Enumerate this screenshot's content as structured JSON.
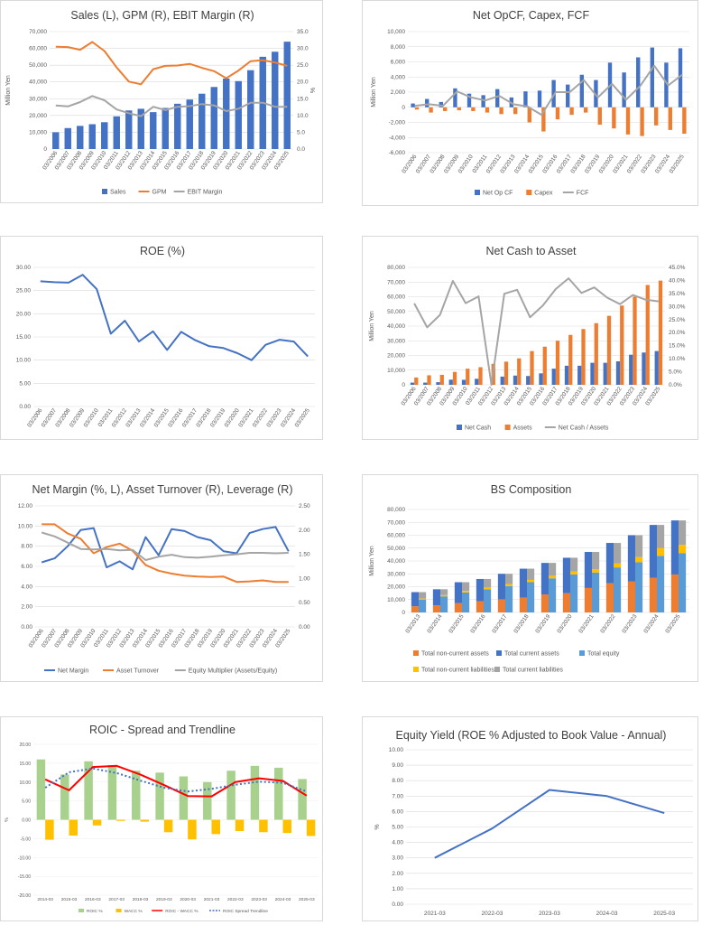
{
  "colors": {
    "blue": "#4472C4",
    "orange": "#ED7D31",
    "gray": "#A5A5A5",
    "yellow": "#FFC000",
    "lightblue": "#5B9BD5",
    "green": "#A9D18E",
    "red": "#FF0000",
    "grid": "#d9d9d9"
  },
  "chart_data": [
    {
      "id": "sales",
      "type": "bar+line",
      "title": "Sales (L), GPM (R), EBIT Margin (R)",
      "ylabel": "Million Yen",
      "y2label": "%",
      "categories": [
        "03/2006",
        "03/2007",
        "03/2008",
        "03/2009",
        "03/2010",
        "03/2011",
        "03/2012",
        "03/2013",
        "03/2014",
        "03/2015",
        "03/2016",
        "03/2017",
        "03/2018",
        "03/2019",
        "03/2020",
        "03/2021",
        "03/2022",
        "03/2023",
        "03/2024",
        "03/2025"
      ],
      "ylim": [
        0,
        70000
      ],
      "yticks": [
        0,
        10000,
        20000,
        30000,
        40000,
        50000,
        60000,
        70000
      ],
      "yticklabels": [
        "0",
        "10,000",
        "20,000",
        "30,000",
        "40,000",
        "50,000",
        "60,000",
        "70,000"
      ],
      "y2lim": [
        0,
        35
      ],
      "y2ticks": [
        0,
        5,
        10,
        15,
        20,
        25,
        30,
        35
      ],
      "y2ticklabels": [
        "0.0",
        "5.0",
        "10.0",
        "15.0",
        "20.0",
        "25.0",
        "30.0",
        "35.0"
      ],
      "bars": [
        {
          "name": "Sales",
          "color": "#4472C4",
          "values": [
            10000,
            12500,
            13800,
            14800,
            16000,
            19500,
            23000,
            24000,
            22000,
            24500,
            27000,
            29500,
            33000,
            37000,
            42000,
            40500,
            47000,
            55000,
            58000,
            64000
          ]
        }
      ],
      "lines": [
        {
          "name": "GPM",
          "color": "#ED7D31",
          "axis": "right",
          "values": [
            30.5,
            30.4,
            29.6,
            31.9,
            29.2,
            24.3,
            20.1,
            19.3,
            23.8,
            24.8,
            24.9,
            25.4,
            24.2,
            23.2,
            21.1,
            23.4,
            26.2,
            26.5,
            25.8,
            24.8
          ]
        },
        {
          "name": "EBIT Margin",
          "color": "#A5A5A5",
          "axis": "right",
          "values": [
            13.0,
            12.7,
            14.0,
            15.8,
            14.5,
            11.8,
            10.7,
            9.8,
            12.6,
            11.6,
            12.6,
            12.8,
            13.4,
            13.0,
            11.3,
            12.0,
            13.8,
            13.8,
            12.6,
            12.6
          ]
        }
      ]
    },
    {
      "id": "opcf",
      "type": "bar+line",
      "title": "Net OpCF, Capex, FCF",
      "ylabel": "Million Yen",
      "categories": [
        "03/2006",
        "03/2007",
        "03/2008",
        "03/2009",
        "03/2010",
        "03/2011",
        "03/2012",
        "03/2013",
        "03/2014",
        "03/2015",
        "03/2016",
        "03/2017",
        "03/2018",
        "03/2019",
        "03/2020",
        "03/2021",
        "03/2022",
        "03/2023",
        "03/2024",
        "03/2025"
      ],
      "ylim": [
        -6000,
        10000
      ],
      "yticks": [
        -6000,
        -4000,
        -2000,
        0,
        2000,
        4000,
        6000,
        8000,
        10000
      ],
      "yticklabels": [
        "-6,000",
        "-4,000",
        "-2,000",
        "0",
        "2,000",
        "4,000",
        "6,000",
        "8,000",
        "10,000"
      ],
      "bars": [
        {
          "name": "Net Op CF",
          "color": "#4472C4",
          "values": [
            500,
            1100,
            700,
            2500,
            1800,
            1600,
            2400,
            1300,
            2100,
            2200,
            3600,
            3000,
            4300,
            3600,
            5900,
            4600,
            6600,
            7900,
            5900,
            7800
          ]
        },
        {
          "name": "Capex",
          "color": "#ED7D31",
          "values": [
            -300,
            -700,
            -500,
            -400,
            -500,
            -700,
            -900,
            -900,
            -2000,
            -3200,
            -1600,
            -1000,
            -700,
            -2300,
            -2800,
            -3600,
            -3800,
            -2400,
            -3000,
            -3500
          ]
        }
      ],
      "lines": [
        {
          "name": "FCF",
          "color": "#A5A5A5",
          "values": [
            200,
            400,
            200,
            2100,
            1300,
            900,
            1500,
            400,
            100,
            -1000,
            2000,
            2000,
            3600,
            1300,
            3100,
            1000,
            2800,
            5500,
            2900,
            4300
          ]
        }
      ]
    },
    {
      "id": "roe",
      "type": "line",
      "title": "ROE (%)",
      "categories": [
        "03/2006",
        "03/2007",
        "03/2008",
        "03/2009",
        "03/2010",
        "03/2011",
        "03/2012",
        "03/2013",
        "03/2014",
        "03/2015",
        "03/2016",
        "03/2017",
        "03/2018",
        "03/2019",
        "03/2020",
        "03/2021",
        "03/2022",
        "03/2023",
        "03/2024",
        "03/2025"
      ],
      "ylim": [
        0,
        30
      ],
      "yticks": [
        0,
        5,
        10,
        15,
        20,
        25,
        30
      ],
      "yticklabels": [
        "0.00",
        "5.00",
        "10.00",
        "15.00",
        "20.00",
        "25.00",
        "30.00"
      ],
      "lines": [
        {
          "name": "ROE",
          "color": "#4472C4",
          "values": [
            27.0,
            26.8,
            26.7,
            28.4,
            25.3,
            15.7,
            18.5,
            14.0,
            16.2,
            12.2,
            16.1,
            14.3,
            13.0,
            12.6,
            11.5,
            10.0,
            13.3,
            14.4,
            14.0,
            10.8
          ]
        }
      ]
    },
    {
      "id": "netcash",
      "type": "bar+line",
      "title": "Net Cash to Asset",
      "ylabel": "Million Yen",
      "categories": [
        "03/2006",
        "03/2007",
        "03/2008",
        "03/2009",
        "03/2010",
        "03/2011",
        "03/2012",
        "03/2013",
        "03/2014",
        "03/2015",
        "03/2016",
        "03/2017",
        "03/2018",
        "03/2019",
        "03/2020",
        "03/2021",
        "03/2022",
        "03/2023",
        "03/2024",
        "03/2025"
      ],
      "ylim": [
        0,
        80000
      ],
      "yticks": [
        0,
        10000,
        20000,
        30000,
        40000,
        50000,
        60000,
        70000,
        80000
      ],
      "yticklabels": [
        "0",
        "10,000",
        "20,000",
        "30,000",
        "40,000",
        "50,000",
        "60,000",
        "70,000",
        "80,000"
      ],
      "y2lim": [
        0,
        45
      ],
      "y2ticks": [
        0,
        5,
        10,
        15,
        20,
        25,
        30,
        35,
        40,
        45
      ],
      "y2ticklabels": [
        "0.0%",
        "5.0%",
        "10.0%",
        "15.0%",
        "20.0%",
        "25.0%",
        "30.0%",
        "35.0%",
        "40.0%",
        "45.0%"
      ],
      "bars": [
        {
          "name": "Net Cash",
          "color": "#4472C4",
          "values": [
            1500,
            1500,
            1800,
            3500,
            3400,
            4100,
            0,
            5600,
            6300,
            6000,
            7800,
            11000,
            13000,
            13000,
            15000,
            15000,
            16000,
            20500,
            22000,
            23000
          ]
        },
        {
          "name": "Assets",
          "color": "#ED7D31",
          "values": [
            5000,
            6500,
            6800,
            8800,
            11000,
            12000,
            14300,
            15800,
            18000,
            23000,
            26000,
            30000,
            34000,
            38000,
            42000,
            47000,
            54000,
            60000,
            68000,
            71000
          ]
        }
      ],
      "lines": [
        {
          "name": "Net Cash / Assets",
          "color": "#A5A5A5",
          "axis": "right",
          "values": [
            31.2,
            22.0,
            26.8,
            39.8,
            31.3,
            33.9,
            0,
            34.9,
            36.4,
            25.9,
            30.4,
            36.7,
            40.8,
            35.2,
            37.3,
            33.4,
            30.9,
            34.4,
            32.6,
            32.0
          ]
        }
      ]
    },
    {
      "id": "margin",
      "type": "line",
      "title": "Net Margin (%, L), Asset Turnover (R), Leverage (R)",
      "categories": [
        "03/2006",
        "03/2007",
        "03/2008",
        "03/2009",
        "03/2010",
        "03/2011",
        "03/2012",
        "03/2013",
        "03/2014",
        "03/2015",
        "03/2016",
        "03/2017",
        "03/2018",
        "03/2019",
        "03/2020",
        "03/2021",
        "03/2022",
        "03/2023",
        "03/2024",
        "03/2025"
      ],
      "ylim": [
        0,
        12
      ],
      "yticks": [
        0,
        2,
        4,
        6,
        8,
        10,
        12
      ],
      "yticklabels": [
        "0.00",
        "2.00",
        "4.00",
        "6.00",
        "8.00",
        "10.00",
        "12.00"
      ],
      "y2lim": [
        0,
        2.5
      ],
      "y2ticks": [
        0,
        0.5,
        1,
        1.5,
        2,
        2.5
      ],
      "y2ticklabels": [
        "0.00",
        "0.50",
        "1.00",
        "1.50",
        "2.00",
        "2.50"
      ],
      "lines": [
        {
          "name": "Net Margin",
          "color": "#4472C4",
          "axis": "left",
          "values": [
            6.4,
            6.8,
            8.0,
            9.6,
            9.8,
            5.9,
            6.5,
            5.7,
            8.9,
            7.1,
            9.7,
            9.5,
            8.9,
            8.6,
            7.5,
            7.3,
            9.3,
            9.7,
            9.9,
            7.5
          ]
        },
        {
          "name": "Asset Turnover",
          "color": "#ED7D31",
          "axis": "right",
          "values": [
            2.12,
            2.12,
            1.93,
            1.82,
            1.52,
            1.65,
            1.72,
            1.57,
            1.28,
            1.16,
            1.1,
            1.06,
            1.04,
            1.03,
            1.04,
            0.93,
            0.94,
            0.96,
            0.93,
            0.93
          ]
        },
        {
          "name": "Equity Multiplier (Assets/Equity)",
          "color": "#A5A5A5",
          "axis": "right",
          "values": [
            1.95,
            1.87,
            1.74,
            1.61,
            1.6,
            1.61,
            1.58,
            1.59,
            1.38,
            1.45,
            1.49,
            1.44,
            1.43,
            1.45,
            1.48,
            1.5,
            1.53,
            1.53,
            1.52,
            1.53
          ]
        }
      ]
    },
    {
      "id": "bs",
      "type": "stacked-bar",
      "title": "BS Composition",
      "ylabel": "Million Yen",
      "categories": [
        "03/2013",
        "03/2014",
        "03/2015",
        "03/2016",
        "03/2017",
        "03/2018",
        "03/2019",
        "03/2020",
        "03/2021",
        "03/2022",
        "03/2023",
        "03/2024",
        "03/2025"
      ],
      "ylim": [
        0,
        80000
      ],
      "yticks": [
        0,
        10000,
        20000,
        30000,
        40000,
        50000,
        60000,
        70000,
        80000
      ],
      "yticklabels": [
        "0",
        "10,000",
        "20,000",
        "30,000",
        "40,000",
        "50,000",
        "60,000",
        "70,000",
        "80,000"
      ],
      "groups": [
        {
          "stack": [
            {
              "name": "Total non-current assets",
              "color": "#ED7D31",
              "values": [
                4800,
                5500,
                7300,
                8800,
                10200,
                11500,
                14000,
                15000,
                19000,
                22700,
                24000,
                27000,
                29500
              ]
            },
            {
              "name": "Total current assets",
              "color": "#4472C4",
              "values": [
                11000,
                12500,
                16200,
                17200,
                19800,
                22500,
                24500,
                27500,
                28000,
                31300,
                36000,
                41000,
                42000
              ]
            }
          ]
        },
        {
          "stack": [
            {
              "name": "Total equity",
              "color": "#5B9BD5",
              "values": [
                10000,
                12500,
                15500,
                18000,
                20500,
                23500,
                26500,
                29500,
                31000,
                35000,
                39000,
                44000,
                46000
              ]
            },
            {
              "name": "Total non-current liabilities",
              "color": "#FFC000",
              "values": [
                800,
                1000,
                1200,
                1400,
                1500,
                1800,
                2000,
                2300,
                2500,
                3000,
                4000,
                6000,
                6500
              ]
            },
            {
              "name": "Total current liabilities",
              "color": "#A5A5A5",
              "values": [
                5000,
                4500,
                6800,
                6600,
                8000,
                8700,
                10000,
                10700,
                13500,
                16000,
                17000,
                18000,
                19000
              ]
            }
          ]
        }
      ]
    },
    {
      "id": "roic",
      "type": "bar+line",
      "title": "ROIC - Spread and Trendline",
      "ylabel": "%",
      "categories": [
        "2014-03",
        "2015-03",
        "2016-03",
        "2017-03",
        "2018-03",
        "2019-03",
        "2020-03",
        "2021-03",
        "2022-03",
        "2023-03",
        "2024-03",
        "2025-03"
      ],
      "ylim": [
        -20,
        20
      ],
      "yticks": [
        -20,
        -15,
        -10,
        -5,
        0,
        5,
        10,
        15,
        20
      ],
      "yticklabels": [
        "-20.00",
        "-15.00",
        "-10.00",
        "-5.00",
        "0.00",
        "5.00",
        "10.00",
        "15.00",
        "20.00"
      ],
      "bars": [
        {
          "name": "ROIC %",
          "color": "#A9D18E",
          "values": [
            16.0,
            12.0,
            15.5,
            14.5,
            13.0,
            12.5,
            11.5,
            10.0,
            13.0,
            14.3,
            13.8,
            10.8
          ]
        },
        {
          "name": "WACC %",
          "color": "#FFC000",
          "values": [
            -5.3,
            -4.2,
            -1.5,
            -0.3,
            -0.5,
            -3.3,
            -5.2,
            -3.8,
            -3.0,
            -3.3,
            -3.5,
            -4.3
          ]
        }
      ],
      "lines": [
        {
          "name": "ROIC - WACC %",
          "color": "#FF0000",
          "values": [
            10.7,
            7.8,
            14.0,
            14.3,
            12.0,
            9.2,
            6.3,
            6.2,
            10.0,
            11.0,
            10.3,
            6.4
          ]
        },
        {
          "name": "ROIC Spread Trendline",
          "color": "#4472C4",
          "dash": true,
          "values": [
            8.5,
            12.6,
            13.6,
            12.4,
            10.4,
            8.5,
            7.5,
            8.2,
            9.3,
            10.1,
            9.8,
            7.5
          ]
        }
      ]
    },
    {
      "id": "eqyield",
      "type": "line",
      "title": "Equity Yield (ROE % Adjusted to Book Value - Annual)",
      "ylabel": "%",
      "categories": [
        "2021-03",
        "2022-03",
        "2023-03",
        "2024-03",
        "2025-03"
      ],
      "ylim": [
        0,
        10
      ],
      "yticks": [
        0,
        1,
        2,
        3,
        4,
        5,
        6,
        7,
        8,
        9,
        10
      ],
      "yticklabels": [
        "0.00",
        "1.00",
        "2.00",
        "3.00",
        "4.00",
        "5.00",
        "6.00",
        "7.00",
        "8.00",
        "9.00",
        "10.00"
      ],
      "lines": [
        {
          "name": "Equity Yield",
          "color": "#4472C4",
          "values": [
            3.0,
            4.9,
            7.4,
            7.0,
            5.9
          ]
        }
      ]
    }
  ],
  "legends": {
    "sales": [
      "Sales",
      "GPM",
      "EBIT Margin"
    ],
    "opcf": [
      "Net Op CF",
      "Capex",
      "FCF"
    ],
    "netcash": [
      "Net Cash",
      "Assets",
      "Net Cash / Assets"
    ],
    "margin": [
      "Net Margin",
      "Asset Turnover",
      "Equity Multiplier (Assets/Equity)"
    ],
    "bs": [
      "Total non-current assets",
      "Total current assets",
      "Total equity",
      "Total non-current liabilities",
      "Total current liabilities"
    ],
    "roic": [
      "ROIC %",
      "WACC %",
      "ROIC - WACC %",
      "ROIC Spread Trendline"
    ]
  }
}
